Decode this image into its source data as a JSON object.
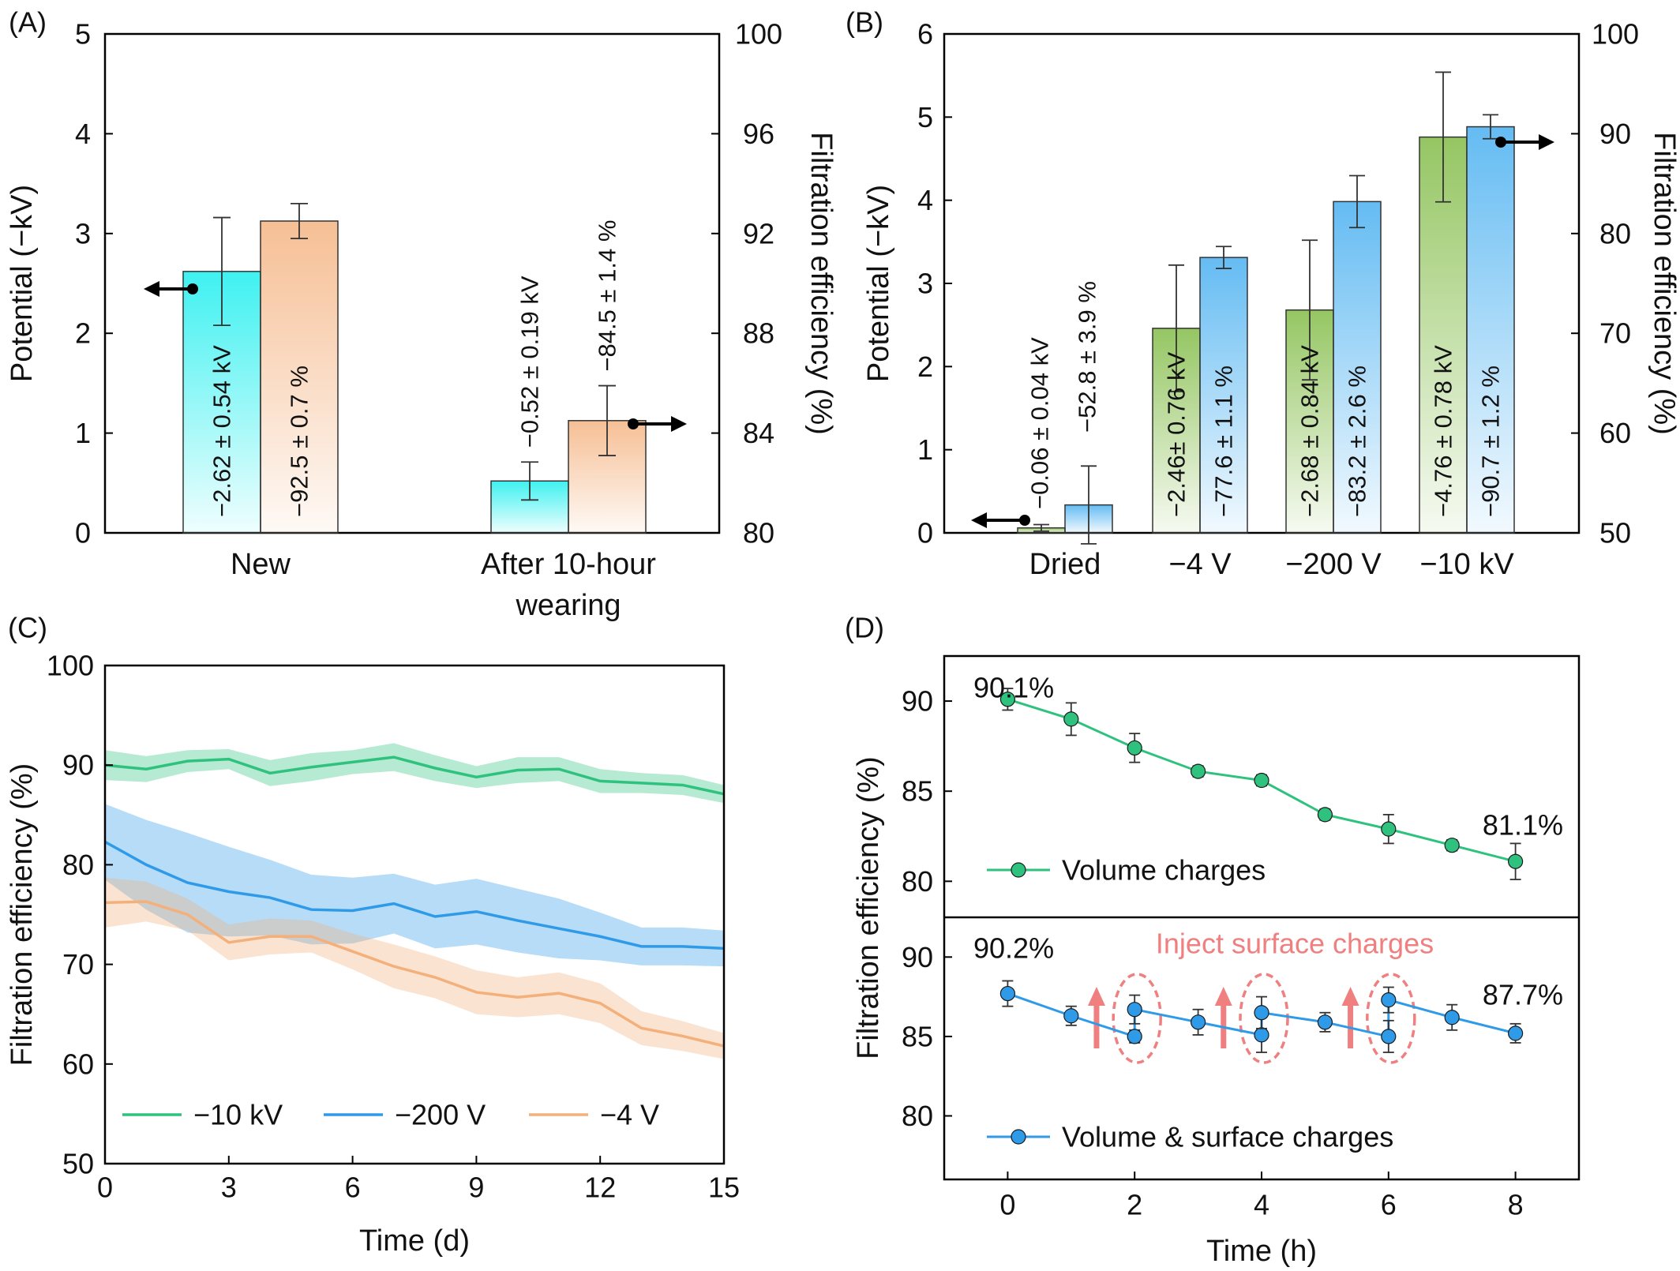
{
  "chart_data": [
    {
      "panel": "(A)",
      "type": "bar",
      "categories": [
        "New",
        "After 10-hour wearing"
      ],
      "category_lines": [
        [
          "New"
        ],
        [
          "After 10-hour",
          "wearing"
        ]
      ],
      "ylabel_left": "Potential (−kV)",
      "ylabel_right": "Filtration efficiency (%)",
      "ylim_left": [
        0,
        5
      ],
      "ylim_right": [
        80,
        100
      ],
      "yticks_left": [
        "0",
        "1",
        "2",
        "3",
        "4",
        "5"
      ],
      "yticks_right": [
        "80",
        "84",
        "88",
        "92",
        "96",
        "100"
      ],
      "series": [
        {
          "axis": "left",
          "color": "#35f0f0",
          "values": [
            2.62,
            0.52
          ],
          "errors": [
            0.54,
            0.19
          ],
          "labels": [
            "−2.62 ± 0.54 kV",
            "−0.52 ± 0.19 kV"
          ]
        },
        {
          "axis": "right",
          "color": "#f5b889",
          "values": [
            92.5,
            84.5
          ],
          "errors": [
            0.7,
            1.4
          ],
          "labels": [
            "−92.5 ± 0.7 %",
            "−84.5 ± 1.4 %"
          ]
        }
      ]
    },
    {
      "panel": "(B)",
      "type": "bar",
      "categories": [
        "Dried",
        "−4 V",
        "−200 V",
        "−10 kV"
      ],
      "ylabel_left": "Potential (−kV)",
      "ylabel_right": "Filtration efficiency (%)",
      "ylim_left": [
        0,
        6
      ],
      "ylim_right": [
        50,
        100
      ],
      "yticks_left": [
        "0",
        "1",
        "2",
        "3",
        "4",
        "5",
        "6"
      ],
      "yticks_right": [
        "50",
        "60",
        "70",
        "80",
        "90",
        "100"
      ],
      "series": [
        {
          "axis": "left",
          "color": "#8fc35a",
          "values": [
            0.06,
            2.46,
            2.68,
            4.76
          ],
          "errors": [
            0.04,
            0.76,
            0.84,
            0.78
          ],
          "labels": [
            "−0.06 ± 0.04 kV",
            "−2.46± 0.76 kV",
            "−2.68 ± 0.84 kV",
            "−4.76 ± 0.78 kV"
          ]
        },
        {
          "axis": "right",
          "color": "#5cb8f2",
          "values": [
            52.8,
            77.6,
            83.2,
            90.7
          ],
          "errors": [
            3.9,
            1.1,
            2.6,
            1.2
          ],
          "labels": [
            "−52.8 ± 3.9 %",
            "−77.6 ± 1.1 %",
            "−83.2 ± 2.6 %",
            "−90.7 ± 1.2 %"
          ]
        }
      ]
    },
    {
      "panel": "(C)",
      "type": "line",
      "xlabel": "Time (d)",
      "ylabel": "Filtration efficiency (%)",
      "xlim": [
        0,
        15
      ],
      "ylim": [
        50,
        100
      ],
      "xticks": [
        "0",
        "3",
        "6",
        "9",
        "12",
        "15"
      ],
      "yticks": [
        "50",
        "60",
        "70",
        "80",
        "90",
        "100"
      ],
      "x": [
        0,
        1,
        2,
        3,
        4,
        5,
        6,
        7,
        8,
        9,
        10,
        11,
        12,
        13,
        14,
        15
      ],
      "series": [
        {
          "name": "−10 kV",
          "color": "#2ec27e",
          "values": [
            90.0,
            89.6,
            90.4,
            90.6,
            89.2,
            89.8,
            90.3,
            90.8,
            89.7,
            88.8,
            89.5,
            89.6,
            88.4,
            88.2,
            88.0,
            87.1
          ],
          "band": [
            1.5,
            1.3,
            1.1,
            1.0,
            1.3,
            1.4,
            1.2,
            1.4,
            1.3,
            1.1,
            1.3,
            1.2,
            1.2,
            1.0,
            1.0,
            0.9
          ]
        },
        {
          "name": "−200 V",
          "color": "#2f9be8",
          "values": [
            82.3,
            80.0,
            78.2,
            77.3,
            76.7,
            75.5,
            75.4,
            76.1,
            74.8,
            75.3,
            74.4,
            73.6,
            72.8,
            71.8,
            71.8,
            71.6
          ],
          "band": [
            3.8,
            4.5,
            5.0,
            4.5,
            3.8,
            3.5,
            3.3,
            3.0,
            3.2,
            3.3,
            3.2,
            3.0,
            2.4,
            1.9,
            1.9,
            1.8
          ]
        },
        {
          "name": "−4 V",
          "color": "#f4b07a",
          "values": [
            76.2,
            76.3,
            75.0,
            72.2,
            72.8,
            72.8,
            71.3,
            69.8,
            68.7,
            67.2,
            66.7,
            67.1,
            66.1,
            63.6,
            62.8,
            61.8
          ],
          "band": [
            2.5,
            2.0,
            1.6,
            1.8,
            1.8,
            1.6,
            1.8,
            2.2,
            2.1,
            2.2,
            2.0,
            2.1,
            2.0,
            1.7,
            1.5,
            1.3
          ]
        }
      ],
      "legend": "bottom"
    },
    {
      "panel": "(D)",
      "type": "line",
      "xlabel": "Time (h)",
      "ylabel": "Filtration efficiency (%)",
      "xlim": [
        -1,
        9
      ],
      "xticks": [
        "0",
        "2",
        "4",
        "6",
        "8"
      ],
      "subplots": [
        {
          "ylim": [
            78,
            92.5
          ],
          "yticks": [
            "80",
            "85",
            "90"
          ],
          "series": [
            {
              "name": "Volume charges",
              "color": "#2ec27e",
              "x": [
                0,
                1,
                2,
                3,
                4,
                5,
                6,
                7,
                8
              ],
              "values": [
                90.1,
                89.0,
                87.4,
                86.1,
                85.6,
                83.7,
                82.9,
                82.0,
                81.1
              ],
              "errors": [
                0.6,
                0.9,
                0.8,
                0.3,
                0.3,
                0.3,
                0.8,
                0.3,
                1.0
              ]
            }
          ],
          "annotations": [
            "90.1%",
            "81.1%"
          ]
        },
        {
          "ylim": [
            76,
            92.5
          ],
          "yticks": [
            "80",
            "85",
            "90"
          ],
          "series": [
            {
              "name": "Volume & surface charges",
              "color": "#2f9be8",
              "x": [
                0,
                1,
                2,
                2,
                3,
                4,
                4,
                5,
                6,
                6,
                7,
                8
              ],
              "values": [
                87.7,
                86.3,
                85.0,
                86.7,
                85.9,
                85.1,
                86.5,
                85.9,
                85.0,
                87.3,
                86.2,
                85.2
              ],
              "errors": [
                0.8,
                0.6,
                0.4,
                0.9,
                0.8,
                1.1,
                1.0,
                0.6,
                1.0,
                0.8,
                0.8,
                0.6
              ]
            }
          ],
          "annotations": [
            "90.2%",
            "87.7%",
            "Inject surface charges"
          ]
        }
      ]
    }
  ]
}
